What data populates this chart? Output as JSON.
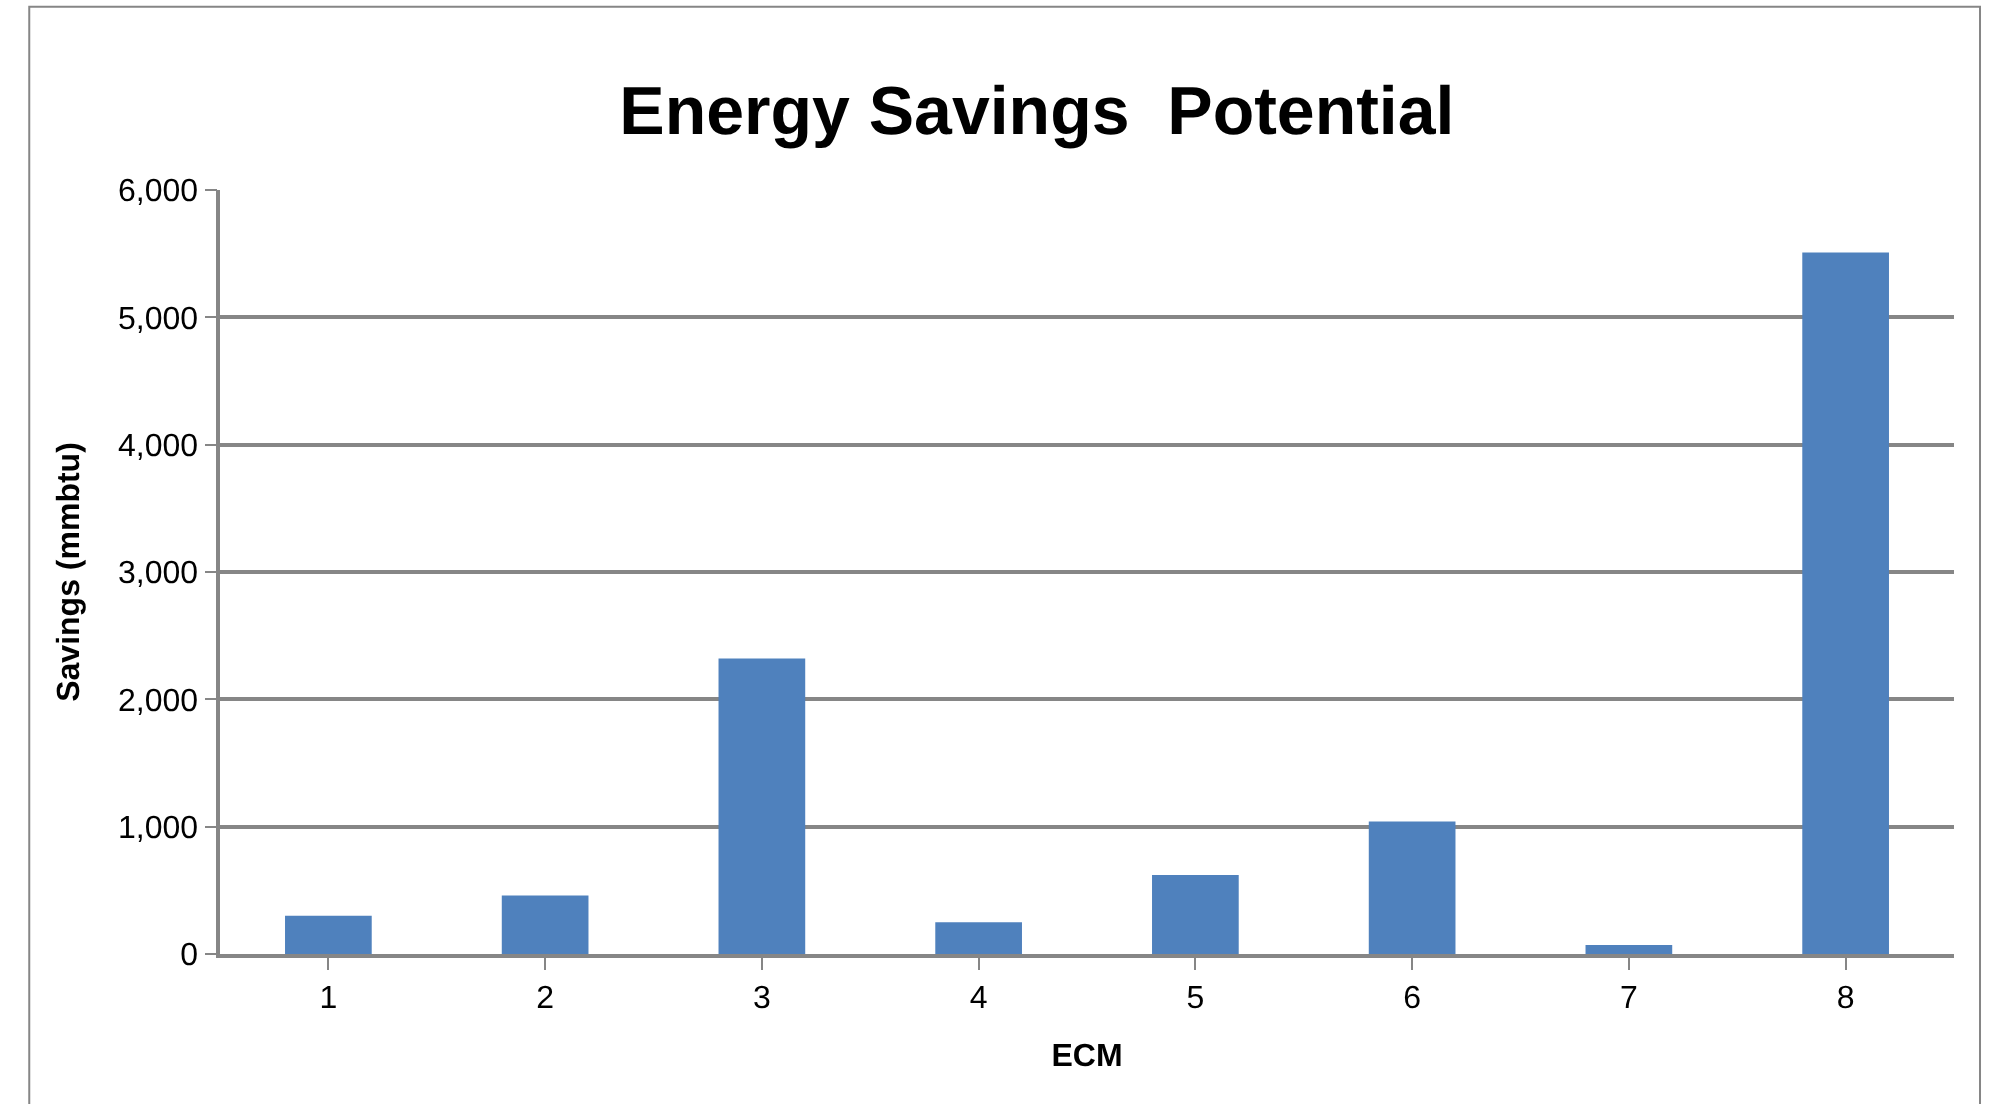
{
  "chart_data": {
    "type": "bar",
    "title": "Energy Savings  Potential",
    "xlabel": "ECM",
    "ylabel": "Savings (mmbtu)",
    "categories": [
      "1",
      "2",
      "3",
      "4",
      "5",
      "6",
      "7",
      "8"
    ],
    "series": [
      {
        "color": "#4f81bd",
        "values": [
          300,
          460,
          2320,
          250,
          620,
          1040,
          70,
          5510
        ]
      }
    ],
    "ylim": [
      0,
      6000
    ],
    "yticks": [
      0,
      {
        "value": 1000,
        "label": "1,000"
      },
      {
        "value": 2000,
        "label": "2,000"
      },
      {
        "value": 3000,
        "label": "3,000"
      },
      {
        "value": 4000,
        "label": "4,000"
      },
      {
        "value": 5000,
        "label": "5,000"
      },
      {
        "value": 6000,
        "label": "6,000"
      }
    ],
    "grid": "y",
    "legend": false
  }
}
